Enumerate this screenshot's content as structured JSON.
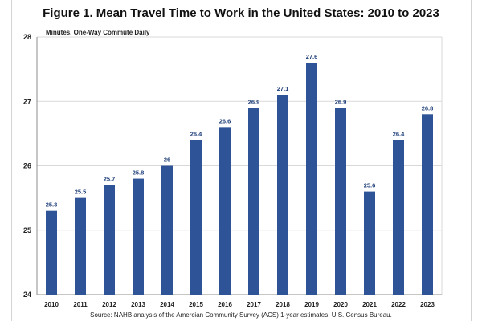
{
  "chart_data": {
    "type": "bar",
    "title": "Figure 1. Mean Travel Time to Work in the United States: 2010 to 2023",
    "ylabel": "Minutes, One-Way Commute Daily",
    "xlabel": "",
    "source": "Source: NAHB analysis of the Amercian Community Survey (ACS) 1-year estimates, U.S. Census Bureau.",
    "categories": [
      "2010",
      "2011",
      "2012",
      "2013",
      "2014",
      "2015",
      "2016",
      "2017",
      "2018",
      "2019",
      "2020",
      "2021",
      "2022",
      "2023"
    ],
    "values": [
      25.3,
      25.5,
      25.7,
      25.8,
      26,
      26.4,
      26.6,
      26.9,
      27.1,
      27.6,
      26.9,
      25.6,
      26.4,
      26.8
    ],
    "data_labels": [
      "25.3",
      "25.5",
      "25.7",
      "25.8",
      "26",
      "26.4",
      "26.6",
      "26.9",
      "27.1",
      "27.6",
      "26.9",
      "25.6",
      "26.4",
      "26.8"
    ],
    "ylim": [
      24,
      28
    ],
    "yticks": [
      "24",
      "25",
      "26",
      "27",
      "28"
    ],
    "grid": true,
    "legend": "none",
    "colors": {
      "bar": "#2e5497",
      "label": "#1f3f7a",
      "grid": "#d9d9d9",
      "axis": "#8c8c8c"
    }
  }
}
